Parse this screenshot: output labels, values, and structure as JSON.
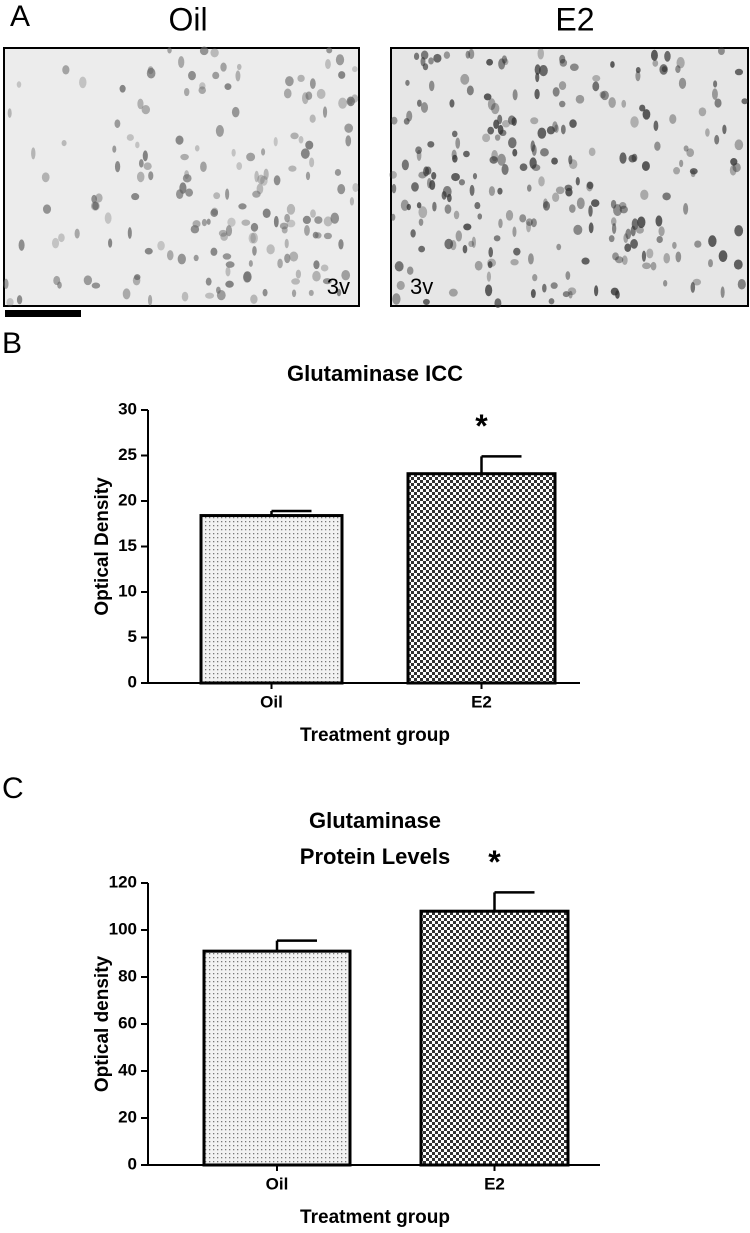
{
  "panel_a": {
    "letter": "A",
    "images": [
      {
        "title": "Oil",
        "label": "3v"
      },
      {
        "title": "E2",
        "label": "3v"
      }
    ]
  },
  "chart_data": [
    {
      "type": "bar",
      "letter": "B",
      "title": [
        "Glutaminase ICC"
      ],
      "categories": [
        "Oil",
        "E2"
      ],
      "values": [
        18.4,
        23.0
      ],
      "errors": [
        0.5,
        1.9
      ],
      "fills": [
        "dots",
        "checker"
      ],
      "annotations": [
        null,
        "*"
      ],
      "xlabel": "Treatment group",
      "ylabel": "Optical Density",
      "ylim": [
        0,
        30
      ],
      "yticks": [
        0,
        5,
        10,
        15,
        20,
        25,
        30
      ]
    },
    {
      "type": "bar",
      "letter": "C",
      "title": [
        "Glutaminase",
        "Protein Levels"
      ],
      "categories": [
        "Oil",
        "E2"
      ],
      "values": [
        91,
        108
      ],
      "errors": [
        4.5,
        8
      ],
      "fills": [
        "dots",
        "checker"
      ],
      "annotations": [
        null,
        "*"
      ],
      "xlabel": "Treatment group",
      "ylabel": "Optical density",
      "ylim": [
        0,
        120
      ],
      "yticks": [
        0,
        20,
        40,
        60,
        80,
        100,
        120
      ]
    }
  ]
}
